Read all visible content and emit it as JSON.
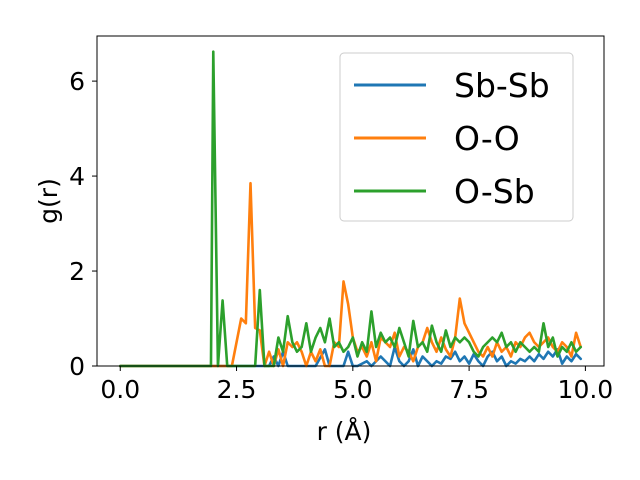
{
  "chart_data": {
    "type": "line",
    "xlabel": "r (Å)",
    "ylabel": "g(r)",
    "xlim": [
      -0.5,
      10.4
    ],
    "ylim": [
      0,
      6.95
    ],
    "xticks": [
      0.0,
      2.5,
      5.0,
      7.5,
      10.0
    ],
    "xtick_labels": [
      "0.0",
      "2.5",
      "5.0",
      "7.5",
      "10.0"
    ],
    "yticks": [
      0,
      2,
      4,
      6
    ],
    "ytick_labels": [
      "0",
      "2",
      "4",
      "6"
    ],
    "grid": false,
    "legend_position": "top-right",
    "series": [
      {
        "name": "Sb-Sb",
        "color": "#1f77b4",
        "points": [
          [
            0.0,
            0
          ],
          [
            1.0,
            0
          ],
          [
            2.0,
            0
          ],
          [
            2.8,
            0
          ],
          [
            3.0,
            0
          ],
          [
            3.2,
            0
          ],
          [
            3.3,
            0.2
          ],
          [
            3.4,
            0
          ],
          [
            3.5,
            0.3
          ],
          [
            3.6,
            0
          ],
          [
            3.8,
            0
          ],
          [
            4.0,
            0
          ],
          [
            4.2,
            0
          ],
          [
            4.4,
            0.35
          ],
          [
            4.5,
            0
          ],
          [
            4.7,
            0
          ],
          [
            4.8,
            0
          ],
          [
            4.9,
            0.3
          ],
          [
            5.0,
            0
          ],
          [
            5.1,
            0
          ],
          [
            5.3,
            0.1
          ],
          [
            5.4,
            0
          ],
          [
            5.6,
            0.2
          ],
          [
            5.7,
            0.1
          ],
          [
            5.8,
            0
          ],
          [
            5.9,
            0.4
          ],
          [
            6.0,
            0.1
          ],
          [
            6.1,
            0
          ],
          [
            6.2,
            0.1
          ],
          [
            6.3,
            0.35
          ],
          [
            6.4,
            0
          ],
          [
            6.5,
            0.2
          ],
          [
            6.6,
            0.1
          ],
          [
            6.7,
            0
          ],
          [
            6.8,
            0.1
          ],
          [
            6.9,
            0.05
          ],
          [
            7.0,
            0.2
          ],
          [
            7.1,
            0.15
          ],
          [
            7.2,
            0.3
          ],
          [
            7.3,
            0.1
          ],
          [
            7.4,
            0.2
          ],
          [
            7.5,
            0.05
          ],
          [
            7.6,
            0.25
          ],
          [
            7.7,
            0.1
          ],
          [
            7.8,
            0
          ],
          [
            7.9,
            0.2
          ],
          [
            8.0,
            0.3
          ],
          [
            8.1,
            0.1
          ],
          [
            8.2,
            0.2
          ],
          [
            8.3,
            0
          ],
          [
            8.4,
            0.1
          ],
          [
            8.5,
            0.05
          ],
          [
            8.6,
            0.15
          ],
          [
            8.7,
            0.1
          ],
          [
            8.8,
            0.2
          ],
          [
            8.9,
            0.1
          ],
          [
            9.0,
            0.25
          ],
          [
            9.1,
            0.15
          ],
          [
            9.2,
            0.3
          ],
          [
            9.3,
            0.2
          ],
          [
            9.4,
            0.35
          ],
          [
            9.5,
            0.05
          ],
          [
            9.6,
            0.2
          ],
          [
            9.7,
            0.1
          ],
          [
            9.8,
            0.25
          ],
          [
            9.9,
            0.15
          ]
        ]
      },
      {
        "name": "O-O",
        "color": "#ff7f0e",
        "points": [
          [
            0.0,
            0
          ],
          [
            1.0,
            0
          ],
          [
            2.0,
            0
          ],
          [
            2.2,
            0
          ],
          [
            2.4,
            0
          ],
          [
            2.6,
            1.0
          ],
          [
            2.7,
            0.9
          ],
          [
            2.8,
            3.85
          ],
          [
            2.9,
            0.8
          ],
          [
            3.0,
            0.75
          ],
          [
            3.1,
            0
          ],
          [
            3.2,
            0.3
          ],
          [
            3.3,
            0
          ],
          [
            3.4,
            0.35
          ],
          [
            3.5,
            0
          ],
          [
            3.6,
            0.5
          ],
          [
            3.7,
            0.4
          ],
          [
            3.8,
            0.5
          ],
          [
            3.9,
            0.3
          ],
          [
            4.0,
            0
          ],
          [
            4.1,
            0.3
          ],
          [
            4.2,
            0.1
          ],
          [
            4.3,
            0.35
          ],
          [
            4.4,
            0
          ],
          [
            4.5,
            0
          ],
          [
            4.6,
            0.5
          ],
          [
            4.7,
            0.4
          ],
          [
            4.8,
            1.78
          ],
          [
            4.9,
            1.3
          ],
          [
            5.0,
            0.6
          ],
          [
            5.1,
            0.3
          ],
          [
            5.2,
            0.4
          ],
          [
            5.3,
            0.2
          ],
          [
            5.4,
            0.5
          ],
          [
            5.5,
            0.1
          ],
          [
            5.6,
            0.6
          ],
          [
            5.7,
            0.5
          ],
          [
            5.8,
            0.4
          ],
          [
            5.9,
            0.7
          ],
          [
            6.0,
            0.2
          ],
          [
            6.1,
            0.4
          ],
          [
            6.2,
            0.3
          ],
          [
            6.3,
            0.1
          ],
          [
            6.4,
            0.4
          ],
          [
            6.5,
            0.5
          ],
          [
            6.6,
            0.8
          ],
          [
            6.7,
            0.5
          ],
          [
            6.8,
            0.3
          ],
          [
            6.9,
            0.6
          ],
          [
            7.0,
            0.35
          ],
          [
            7.1,
            0.2
          ],
          [
            7.2,
            0.6
          ],
          [
            7.3,
            1.42
          ],
          [
            7.4,
            0.9
          ],
          [
            7.5,
            0.7
          ],
          [
            7.6,
            0.5
          ],
          [
            7.7,
            0.3
          ],
          [
            7.8,
            0.2
          ],
          [
            7.9,
            0.4
          ],
          [
            8.0,
            0.2
          ],
          [
            8.1,
            0.5
          ],
          [
            8.2,
            0.3
          ],
          [
            8.3,
            0.4
          ],
          [
            8.4,
            0.2
          ],
          [
            8.5,
            0.5
          ],
          [
            8.6,
            0.4
          ],
          [
            8.7,
            0.6
          ],
          [
            8.8,
            0.7
          ],
          [
            8.9,
            0.5
          ],
          [
            9.0,
            0.4
          ],
          [
            9.1,
            0.5
          ],
          [
            9.2,
            0.6
          ],
          [
            9.3,
            0.4
          ],
          [
            9.4,
            0.3
          ],
          [
            9.5,
            0.5
          ],
          [
            9.6,
            0.4
          ],
          [
            9.7,
            0.2
          ],
          [
            9.8,
            0.7
          ],
          [
            9.9,
            0.4
          ]
        ]
      },
      {
        "name": "O-Sb",
        "color": "#2ca02c",
        "points": [
          [
            0.0,
            0
          ],
          [
            1.0,
            0
          ],
          [
            1.9,
            0
          ],
          [
            1.95,
            0
          ],
          [
            2.0,
            6.62
          ],
          [
            2.1,
            0
          ],
          [
            2.2,
            1.38
          ],
          [
            2.3,
            0
          ],
          [
            2.4,
            0
          ],
          [
            2.6,
            0
          ],
          [
            2.8,
            0
          ],
          [
            2.9,
            0
          ],
          [
            3.0,
            1.6
          ],
          [
            3.1,
            0
          ],
          [
            3.2,
            0
          ],
          [
            3.3,
            0
          ],
          [
            3.4,
            0.6
          ],
          [
            3.5,
            0.3
          ],
          [
            3.6,
            1.05
          ],
          [
            3.7,
            0.5
          ],
          [
            3.8,
            0.3
          ],
          [
            3.9,
            0.4
          ],
          [
            4.0,
            0.9
          ],
          [
            4.1,
            0.3
          ],
          [
            4.2,
            0.6
          ],
          [
            4.3,
            0.8
          ],
          [
            4.4,
            0.5
          ],
          [
            4.5,
            1.0
          ],
          [
            4.6,
            0.4
          ],
          [
            4.7,
            0.5
          ],
          [
            4.8,
            0.3
          ],
          [
            4.9,
            0.4
          ],
          [
            5.0,
            0.6
          ],
          [
            5.1,
            0.2
          ],
          [
            5.2,
            0.5
          ],
          [
            5.3,
            0.3
          ],
          [
            5.4,
            1.15
          ],
          [
            5.5,
            0.4
          ],
          [
            5.6,
            0.7
          ],
          [
            5.7,
            0.5
          ],
          [
            5.8,
            0.6
          ],
          [
            5.9,
            0.4
          ],
          [
            6.0,
            0.8
          ],
          [
            6.1,
            0.5
          ],
          [
            6.2,
            0.2
          ],
          [
            6.3,
            0.95
          ],
          [
            6.4,
            0.4
          ],
          [
            6.5,
            0.5
          ],
          [
            6.6,
            0.3
          ],
          [
            6.7,
            0.85
          ],
          [
            6.8,
            0.5
          ],
          [
            6.9,
            0.3
          ],
          [
            7.0,
            0.75
          ],
          [
            7.1,
            0.4
          ],
          [
            7.2,
            0.6
          ],
          [
            7.3,
            0.5
          ],
          [
            7.4,
            0.6
          ],
          [
            7.5,
            0.5
          ],
          [
            7.6,
            0.3
          ],
          [
            7.7,
            0.2
          ],
          [
            7.8,
            0.4
          ],
          [
            7.9,
            0.5
          ],
          [
            8.0,
            0.6
          ],
          [
            8.1,
            0.5
          ],
          [
            8.2,
            0.7
          ],
          [
            8.3,
            0.4
          ],
          [
            8.4,
            0.5
          ],
          [
            8.5,
            0.3
          ],
          [
            8.6,
            0.5
          ],
          [
            8.7,
            0.4
          ],
          [
            8.8,
            0.3
          ],
          [
            8.9,
            0.4
          ],
          [
            9.0,
            0.3
          ],
          [
            9.1,
            0.9
          ],
          [
            9.2,
            0.4
          ],
          [
            9.3,
            0.6
          ],
          [
            9.4,
            0.2
          ],
          [
            9.5,
            0.4
          ],
          [
            9.6,
            0.3
          ],
          [
            9.7,
            0.5
          ],
          [
            9.8,
            0.3
          ],
          [
            9.9,
            0.4
          ]
        ]
      }
    ]
  }
}
